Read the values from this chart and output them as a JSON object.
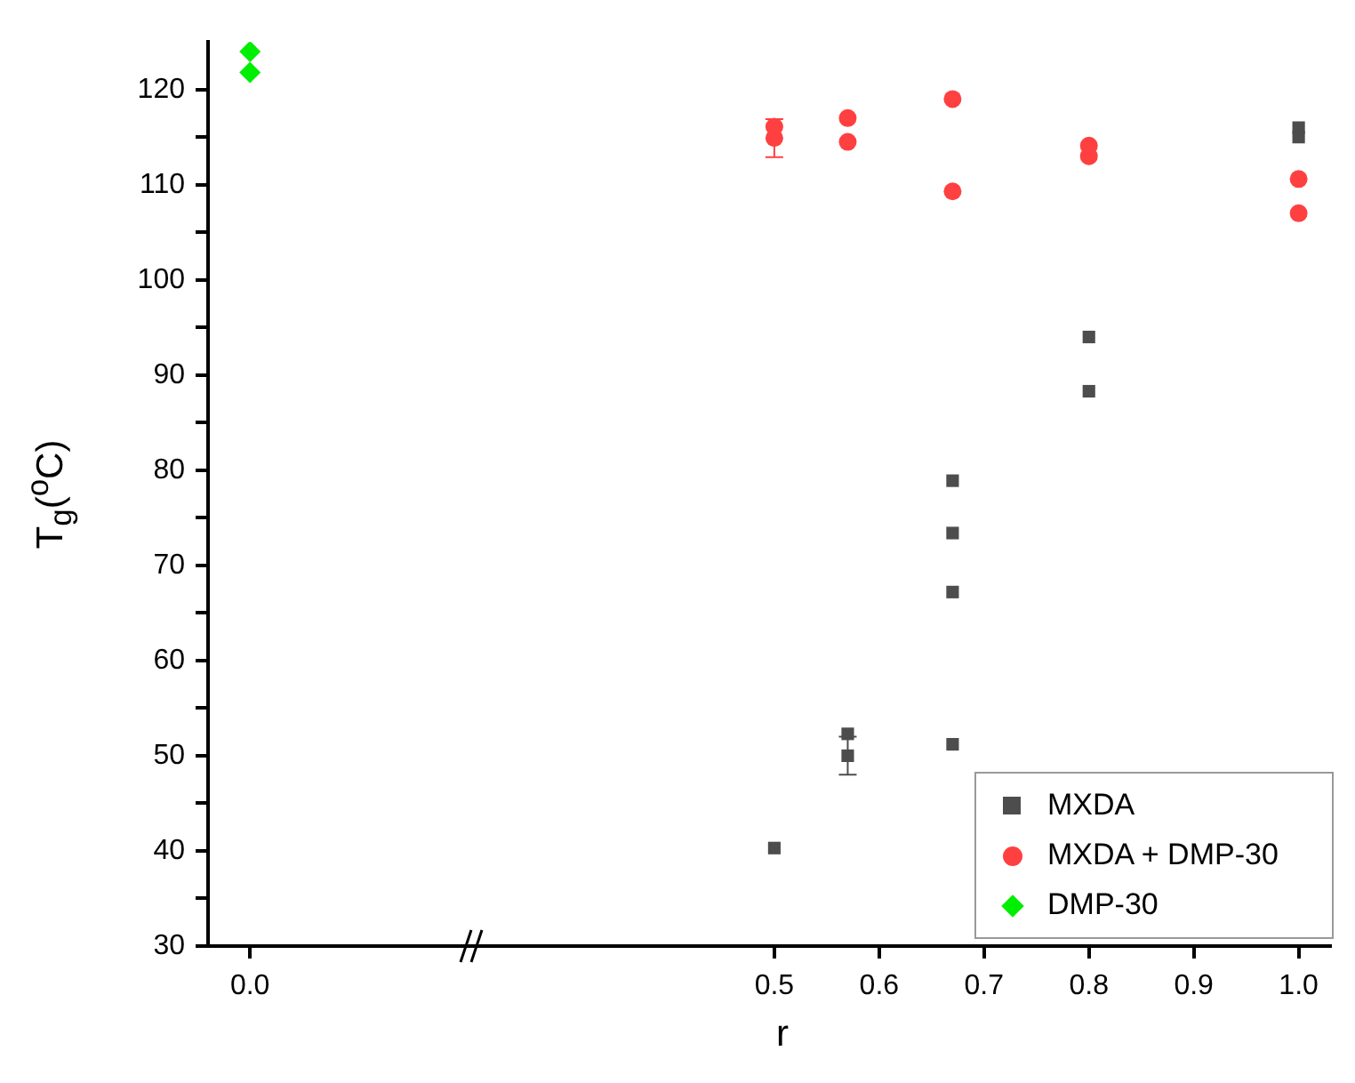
{
  "chart_data": {
    "type": "scatter",
    "xlabel": "r",
    "ylabel": "T$_{g}$($^{o}$C)",
    "xlim": [
      -0.04,
      1.03
    ],
    "xticks": [
      {
        "value": 0,
        "label": "0.0"
      },
      0.5,
      0.6,
      0.7,
      0.8,
      0.9,
      {
        "value": 1,
        "label": "1.0"
      }
    ],
    "ylim": [
      30,
      125
    ],
    "yticks": [
      30,
      {
        "value": 35,
        "label": null
      },
      40,
      {
        "value": 45,
        "label": null
      },
      50,
      {
        "value": 55,
        "label": null
      },
      60,
      {
        "value": 65,
        "label": null
      },
      70,
      {
        "value": 75,
        "label": null
      },
      80,
      {
        "value": 85,
        "label": null
      },
      90,
      {
        "value": 95,
        "label": null
      },
      100,
      {
        "value": 105,
        "label": null
      },
      110,
      {
        "value": 115,
        "label": null
      },
      120
    ],
    "grid": false,
    "legend": "bottom right",
    "series": [
      {
        "name": "MXDA",
        "color": "#4d4d4d",
        "marker": "square",
        "x": [
          0.5,
          0.57,
          0.57,
          0.67,
          0.67,
          0.67,
          0.67,
          0.8,
          0.8,
          1.0,
          1.0
        ],
        "values": [
          40.3,
          52.3,
          50.0,
          78.9,
          73.4,
          67.2,
          51.2,
          94.0,
          88.3,
          116,
          115
        ],
        "errors": [
          null,
          null,
          2,
          null,
          null,
          null,
          null,
          null,
          null,
          null,
          null
        ]
      },
      {
        "name": "MXDA + DMP-30",
        "color": "#ff4040",
        "marker": "circle",
        "x": [
          0.5,
          0.5,
          0.57,
          0.57,
          0.67,
          0.67,
          0.8,
          0.8,
          1.0,
          1.0
        ],
        "values": [
          116.1,
          114.9,
          117.0,
          114.5,
          119.0,
          109.3,
          114.1,
          113.0,
          110.6,
          107.0
        ],
        "errors": [
          null,
          2,
          null,
          null,
          null,
          null,
          null,
          null,
          null,
          null
        ]
      },
      {
        "name": "DMP-30",
        "color": "#00ee00",
        "marker": "diamond",
        "x": [
          0,
          0
        ],
        "values": [
          124.0,
          121.8
        ]
      }
    ]
  }
}
